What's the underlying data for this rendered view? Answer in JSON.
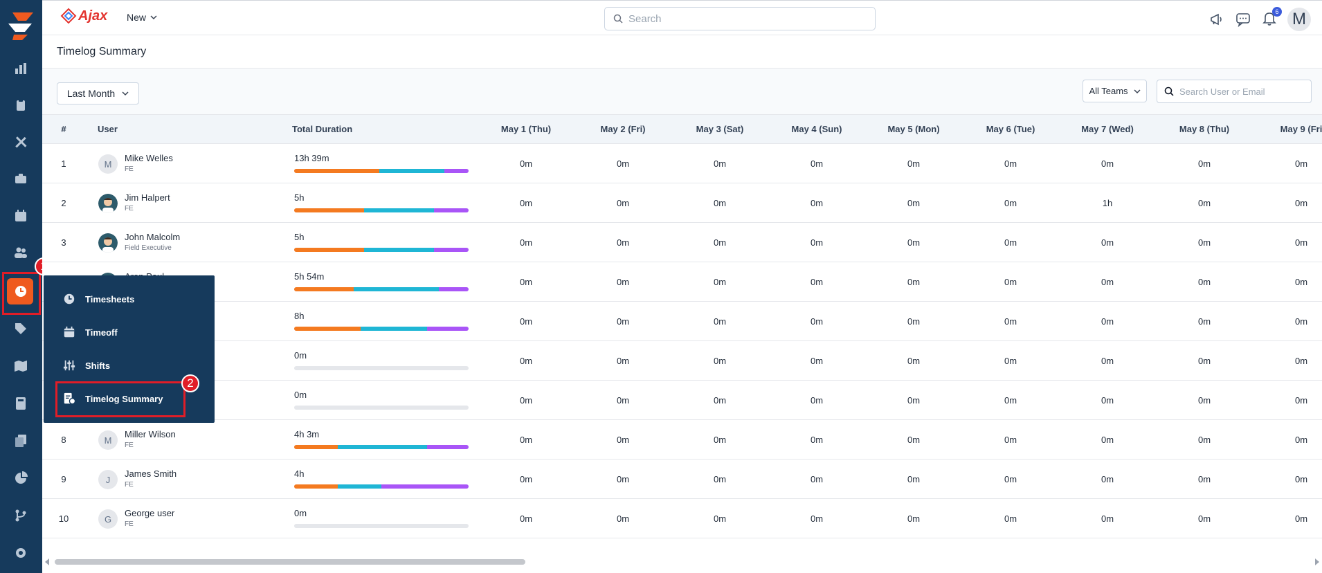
{
  "app": {
    "brand": "Ajax",
    "new_label": "New",
    "search_placeholder": "Search",
    "notification_count": "6",
    "user_initial": "M"
  },
  "page": {
    "title": "Timelog Summary"
  },
  "filters": {
    "period": "Last Month",
    "team": "All Teams",
    "user_search_placeholder": "Search User or Email"
  },
  "annotations": {
    "step1": "1",
    "step2": "2"
  },
  "flyout": {
    "items": [
      {
        "label": "Timesheets",
        "icon": "clock-icon"
      },
      {
        "label": "Timeoff",
        "icon": "calendar-icon"
      },
      {
        "label": "Shifts",
        "icon": "sliders-icon"
      },
      {
        "label": "Timelog Summary",
        "icon": "report-clock-icon"
      }
    ]
  },
  "table": {
    "headers": {
      "num": "#",
      "user": "User",
      "total": "Total Duration",
      "days": [
        "May 1 (Thu)",
        "May 2 (Fri)",
        "May 3 (Sat)",
        "May 4 (Sun)",
        "May 5 (Mon)",
        "May 6 (Tue)",
        "May 7 (Wed)",
        "May 8 (Thu)",
        "May 9 (Fri"
      ]
    },
    "colors": {
      "seg1": "#f47a20",
      "seg2": "#1fb6d5",
      "seg3": "#a955f7",
      "empty": "#e5e7eb"
    },
    "rows": [
      {
        "num": "1",
        "name": "Mike Welles",
        "role": "FE",
        "initial": "M",
        "photo": false,
        "total": "13h 39m",
        "bar": [
          0.49,
          0.37,
          0.14
        ],
        "days": [
          "0m",
          "0m",
          "0m",
          "0m",
          "0m",
          "0m",
          "0m",
          "0m",
          "0m"
        ]
      },
      {
        "num": "2",
        "name": "Jim Halpert",
        "role": "FE",
        "initial": "",
        "photo": true,
        "total": "5h",
        "bar": [
          0.4,
          0.4,
          0.2
        ],
        "days": [
          "0m",
          "0m",
          "0m",
          "0m",
          "0m",
          "0m",
          "1h",
          "0m",
          "0m"
        ]
      },
      {
        "num": "3",
        "name": "John Malcolm",
        "role": "Field Executive",
        "initial": "",
        "photo": true,
        "total": "5h",
        "bar": [
          0.4,
          0.4,
          0.2
        ],
        "days": [
          "0m",
          "0m",
          "0m",
          "0m",
          "0m",
          "0m",
          "0m",
          "0m",
          "0m"
        ]
      },
      {
        "num": "4",
        "name": "Aron Paul",
        "role": "",
        "initial": "",
        "photo": true,
        "total": "5h 54m",
        "bar": [
          0.34,
          0.49,
          0.17
        ],
        "days": [
          "0m",
          "0m",
          "0m",
          "0m",
          "0m",
          "0m",
          "0m",
          "0m",
          "0m"
        ]
      },
      {
        "num": "5",
        "name": "",
        "role": "",
        "initial": "",
        "photo": false,
        "total": "8h",
        "bar": [
          0.38,
          0.38,
          0.24
        ],
        "days": [
          "0m",
          "0m",
          "0m",
          "0m",
          "0m",
          "0m",
          "0m",
          "0m",
          "0m"
        ]
      },
      {
        "num": "6",
        "name": "",
        "role": "",
        "initial": "",
        "photo": false,
        "total": "0m",
        "bar": [
          0,
          0,
          0
        ],
        "days": [
          "0m",
          "0m",
          "0m",
          "0m",
          "0m",
          "0m",
          "0m",
          "0m",
          "0m"
        ]
      },
      {
        "num": "7",
        "name": "",
        "role": "",
        "initial": "",
        "photo": false,
        "total": "0m",
        "bar": [
          0,
          0,
          0
        ],
        "days": [
          "0m",
          "0m",
          "0m",
          "0m",
          "0m",
          "0m",
          "0m",
          "0m",
          "0m"
        ]
      },
      {
        "num": "8",
        "name": "Miller Wilson",
        "role": "FE",
        "initial": "M",
        "photo": false,
        "total": "4h 3m",
        "bar": [
          0.25,
          0.51,
          0.24
        ],
        "days": [
          "0m",
          "0m",
          "0m",
          "0m",
          "0m",
          "0m",
          "0m",
          "0m",
          "0m"
        ]
      },
      {
        "num": "9",
        "name": "James Smith",
        "role": "FE",
        "initial": "J",
        "photo": false,
        "total": "4h",
        "bar": [
          0.25,
          0.25,
          0.5
        ],
        "days": [
          "0m",
          "0m",
          "0m",
          "0m",
          "0m",
          "0m",
          "0m",
          "0m",
          "0m"
        ]
      },
      {
        "num": "10",
        "name": "George user",
        "role": "FE",
        "initial": "G",
        "photo": false,
        "total": "0m",
        "bar": [
          0,
          0,
          0
        ],
        "days": [
          "0m",
          "0m",
          "0m",
          "0m",
          "0m",
          "0m",
          "0m",
          "0m",
          "0m"
        ]
      }
    ]
  }
}
